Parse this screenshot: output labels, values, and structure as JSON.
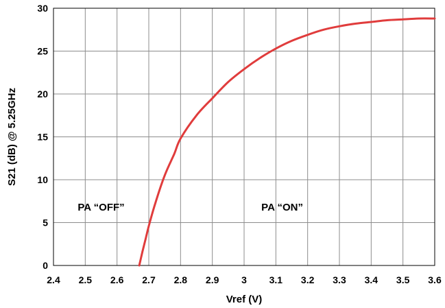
{
  "chart_data": {
    "type": "line",
    "title": "",
    "xlabel": "Vref (V)",
    "ylabel": "S21 (dB) @ 5.25GHz",
    "xlim": [
      2.4,
      3.6
    ],
    "ylim": [
      0,
      30
    ],
    "x_ticks": [
      "2.4",
      "2.5",
      "2.6",
      "2.7",
      "2.8",
      "2.9",
      "3",
      "3.1",
      "3.2",
      "3.3",
      "3.4",
      "3.5",
      "3.6"
    ],
    "y_ticks": [
      "0",
      "5",
      "10",
      "15",
      "20",
      "25",
      "30"
    ],
    "grid": true,
    "series": [
      {
        "color": "#e03c3c",
        "x": [
          2.67,
          2.68,
          2.69,
          2.7,
          2.72,
          2.75,
          2.78,
          2.8,
          2.85,
          2.9,
          2.95,
          3.0,
          3.05,
          3.1,
          3.15,
          3.2,
          3.25,
          3.3,
          3.35,
          3.4,
          3.45,
          3.5,
          3.55,
          3.6
        ],
        "y": [
          0.0,
          1.6,
          3.1,
          4.6,
          7.2,
          10.5,
          13.0,
          14.8,
          17.5,
          19.5,
          21.4,
          22.9,
          24.2,
          25.3,
          26.2,
          26.9,
          27.5,
          27.9,
          28.2,
          28.4,
          28.6,
          28.7,
          28.8,
          28.8
        ]
      }
    ],
    "annotations": [
      {
        "text": "PA “OFF”",
        "x": 2.55,
        "y": 6.4
      },
      {
        "text": "PA “ON”",
        "x": 3.12,
        "y": 6.4
      }
    ]
  }
}
